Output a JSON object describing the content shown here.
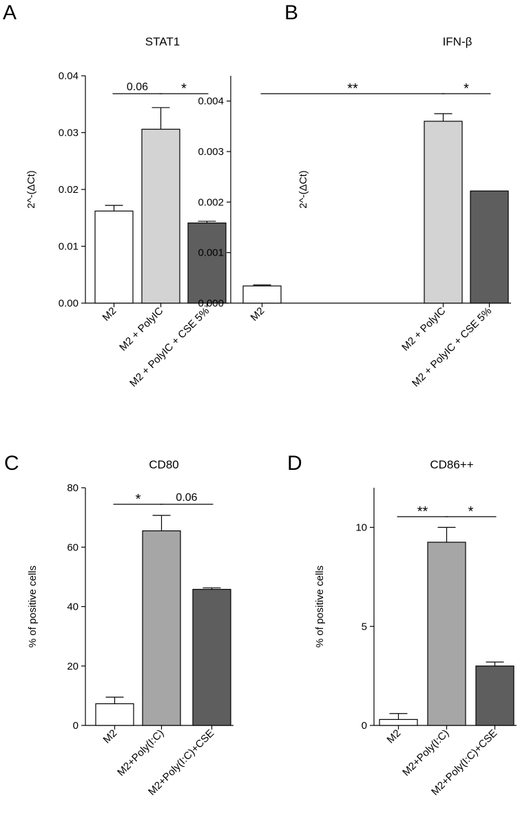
{
  "chart_data": [
    {
      "panel": "A",
      "type": "bar",
      "title": "STAT1",
      "ylabel": "2^-(ΔCt)",
      "categories": [
        "M2",
        "M2 + PolyIC",
        "M2 + PolyIC + CSE 5%"
      ],
      "values": [
        0.0162,
        0.0306,
        0.0141
      ],
      "errors": [
        0.001,
        0.0038,
        0.0003
      ],
      "colors": [
        "#ffffff",
        "#d3d3d3",
        "#5e5e5e"
      ],
      "ylim": [
        0,
        0.04
      ],
      "yticks": [
        "0.00",
        "0.01",
        "0.02",
        "0.03",
        "0.04"
      ],
      "annotations": [
        {
          "from": 0,
          "to": 1,
          "label": "0.06"
        },
        {
          "from": 1,
          "to": 2,
          "label": "*"
        }
      ]
    },
    {
      "panel": "B",
      "type": "bar",
      "title": "IFN-β",
      "ylabel": "2^-(ΔCt)",
      "categories": [
        "M2",
        "M2 + PolyIC",
        "M2 + PolyIC + CSE 5%"
      ],
      "values": [
        0.00034,
        0.0036,
        0.00222
      ],
      "errors": [
        2e-05,
        0.00015,
        0
      ],
      "colors": [
        "#ffffff",
        "#d3d3d3",
        "#5e5e5e"
      ],
      "ylim": [
        0,
        0.0045
      ],
      "yticks": [
        "0.000",
        "0.001",
        "0.002",
        "0.003",
        "0.004"
      ],
      "annotations": [
        {
          "from": 0,
          "to": 1,
          "label": "**"
        },
        {
          "from": 1,
          "to": 2,
          "label": "*"
        }
      ]
    },
    {
      "panel": "C",
      "type": "bar",
      "title": "CD80",
      "ylabel": "% of positive cells",
      "categories": [
        "M2",
        "M2+Poly(I:C)",
        "M2+Poly(I:C)+CSE"
      ],
      "values": [
        7.3,
        65.5,
        45.8
      ],
      "errors": [
        2.2,
        5.2,
        0.5
      ],
      "colors": [
        "#ffffff",
        "#a6a6a6",
        "#5e5e5e"
      ],
      "ylim": [
        0,
        80
      ],
      "yticks": [
        "0",
        "20",
        "40",
        "60",
        "80"
      ],
      "annotations": [
        {
          "from": 0,
          "to": 1,
          "label": "*"
        },
        {
          "from": 1,
          "to": 2,
          "label": "0.06"
        }
      ]
    },
    {
      "panel": "D",
      "type": "bar",
      "title": "CD86++",
      "ylabel": "% of positive cells",
      "categories": [
        "M2",
        "M2+Poly(I:C)",
        "M2+Poly(I:C)+CSE"
      ],
      "values": [
        0.3,
        9.25,
        3.0
      ],
      "errors": [
        0.3,
        0.75,
        0.2
      ],
      "colors": [
        "#ffffff",
        "#a6a6a6",
        "#5e5e5e"
      ],
      "ylim": [
        0,
        12
      ],
      "yticks": [
        "0",
        "5",
        "10"
      ],
      "annotations": [
        {
          "from": 0,
          "to": 1,
          "label": "**"
        },
        {
          "from": 1,
          "to": 2,
          "label": "*"
        }
      ]
    }
  ]
}
